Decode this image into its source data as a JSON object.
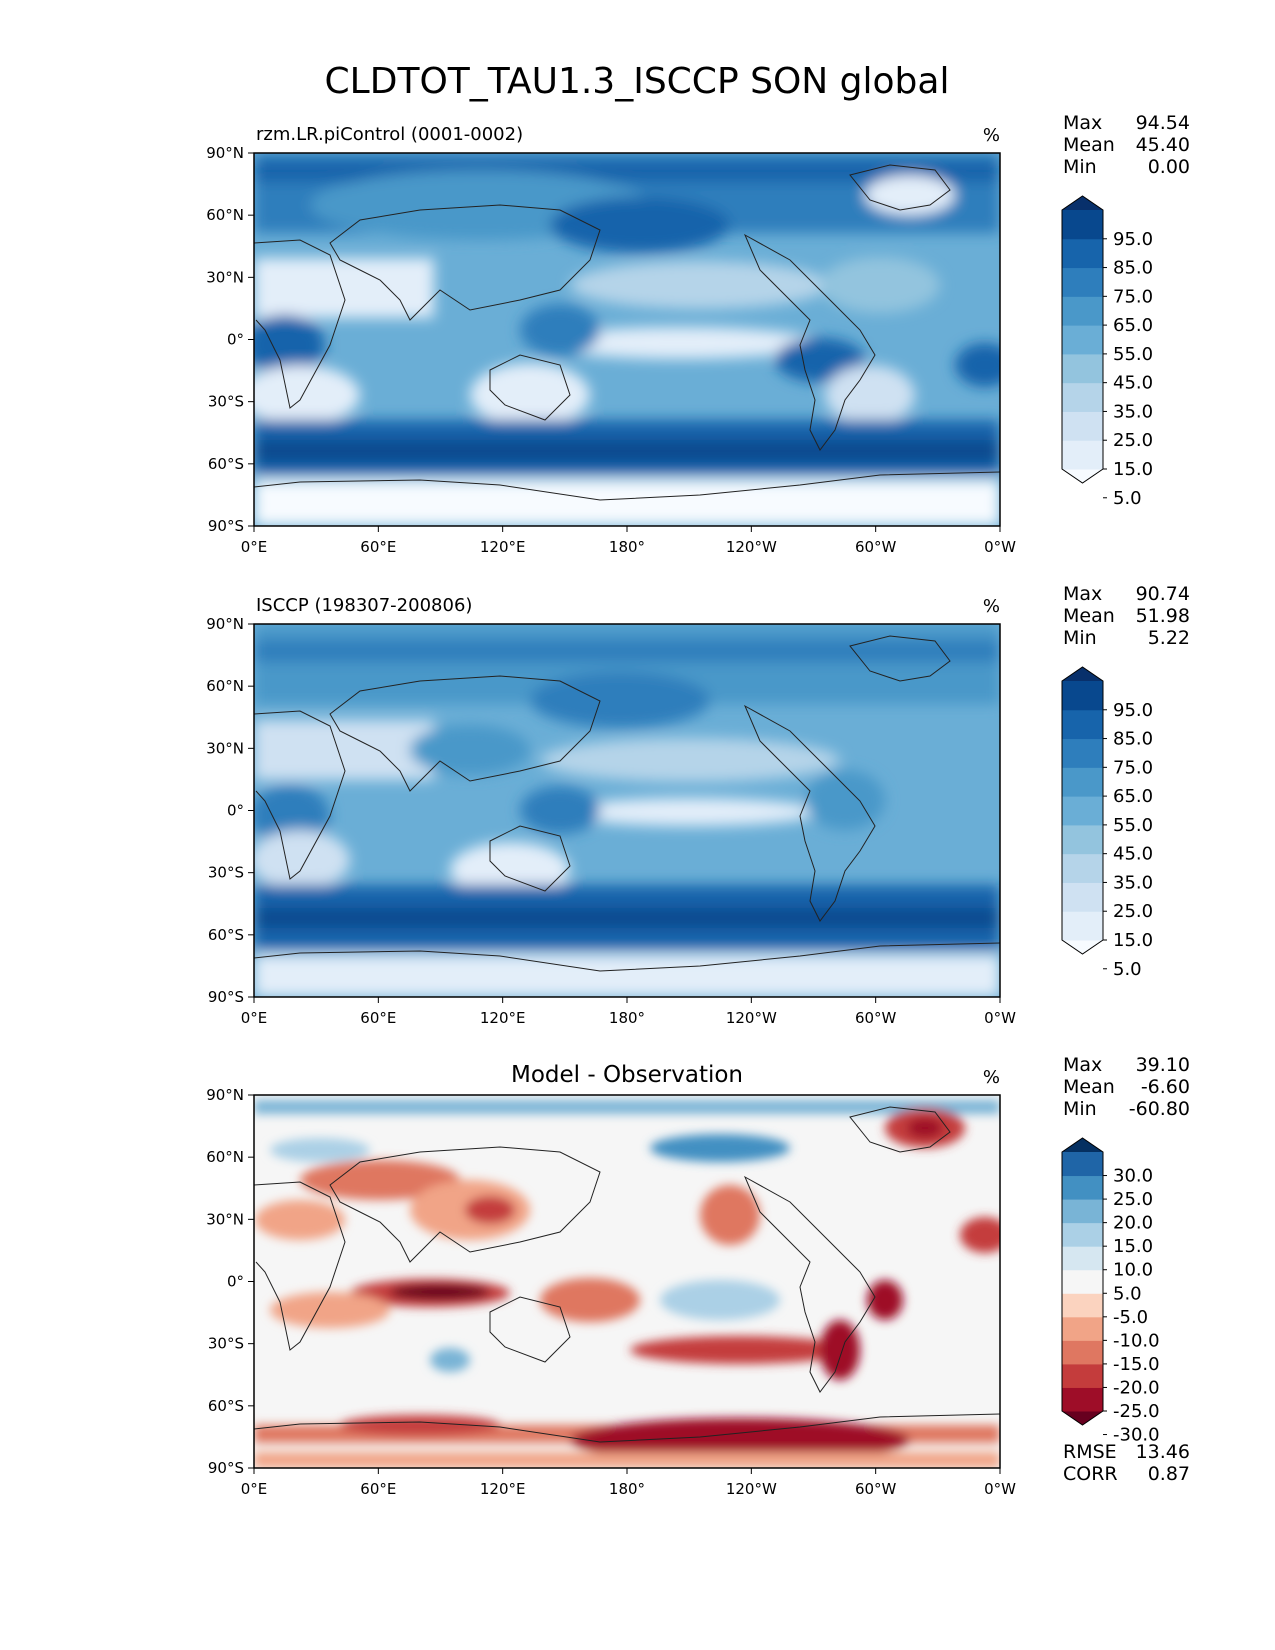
{
  "title": "CLDTOT_TAU1.3_ISCCP SON global",
  "units": "%",
  "chart_data": [
    {
      "type": "heatmap",
      "title": "rzm.LR.piControl (0001-0002)",
      "units": "%",
      "ylabels": [
        "90°N",
        "60°N",
        "30°N",
        "0°",
        "30°S",
        "60°S",
        "90°S"
      ],
      "xlabels": [
        "0°E",
        "60°E",
        "120°E",
        "180°",
        "120°W",
        "60°W",
        "0°W"
      ],
      "stats": [
        {
          "label": "Max",
          "value": "94.54"
        },
        {
          "label": "Mean",
          "value": "45.40"
        },
        {
          "label": "Min",
          "value": "0.00"
        }
      ],
      "colorbar": {
        "labels": [
          "95.0",
          "85.0",
          "75.0",
          "65.0",
          "55.0",
          "45.0",
          "35.0",
          "25.0",
          "15.0",
          "5.0"
        ],
        "colors": [
          "#f7fbff",
          "#e3eef9",
          "#cfe1f2",
          "#b5d4e9",
          "#93c4de",
          "#6aaed6",
          "#4a98c9",
          "#2e7ebc",
          "#1764ab",
          "#08488e",
          "#08306b"
        ]
      }
    },
    {
      "type": "heatmap",
      "title": "ISCCP (198307-200806)",
      "units": "%",
      "ylabels": [
        "90°N",
        "60°N",
        "30°N",
        "0°",
        "30°S",
        "60°S",
        "90°S"
      ],
      "xlabels": [
        "0°E",
        "60°E",
        "120°E",
        "180°",
        "120°W",
        "60°W",
        "0°W"
      ],
      "stats": [
        {
          "label": "Max",
          "value": "90.74"
        },
        {
          "label": "Mean",
          "value": "51.98"
        },
        {
          "label": "Min",
          "value": "5.22"
        }
      ],
      "colorbar": {
        "labels": [
          "95.0",
          "85.0",
          "75.0",
          "65.0",
          "55.0",
          "45.0",
          "35.0",
          "25.0",
          "15.0",
          "5.0"
        ],
        "colors": [
          "#f7fbff",
          "#e3eef9",
          "#cfe1f2",
          "#b5d4e9",
          "#93c4de",
          "#6aaed6",
          "#4a98c9",
          "#2e7ebc",
          "#1764ab",
          "#08488e",
          "#08306b"
        ]
      }
    },
    {
      "type": "heatmap",
      "title": "Model - Observation",
      "units": "%",
      "ylabels": [
        "90°N",
        "60°N",
        "30°N",
        "0°",
        "30°S",
        "60°S",
        "90°S"
      ],
      "xlabels": [
        "0°E",
        "60°E",
        "120°E",
        "180°",
        "120°W",
        "60°W",
        "0°W"
      ],
      "stats": [
        {
          "label": "Max",
          "value": "39.10"
        },
        {
          "label": "Mean",
          "value": "-6.60"
        },
        {
          "label": "Min",
          "value": "-60.80"
        }
      ],
      "extra_stats": [
        {
          "label": "RMSE",
          "value": "13.46"
        },
        {
          "label": "CORR",
          "value": "0.87"
        }
      ],
      "colorbar": {
        "labels": [
          "30.0",
          "25.0",
          "20.0",
          "15.0",
          "10.0",
          "5.0",
          "-5.0",
          "-10.0",
          "-15.0",
          "-20.0",
          "-25.0",
          "-30.0"
        ],
        "colors": [
          "#67001f",
          "#9e0d28",
          "#c43c3c",
          "#df7761",
          "#f1a487",
          "#fbd3bf",
          "#f6f6f6",
          "#d6e7f1",
          "#abd0e6",
          "#79b4d6",
          "#4290c2",
          "#1f65a7",
          "#053061"
        ]
      }
    }
  ]
}
